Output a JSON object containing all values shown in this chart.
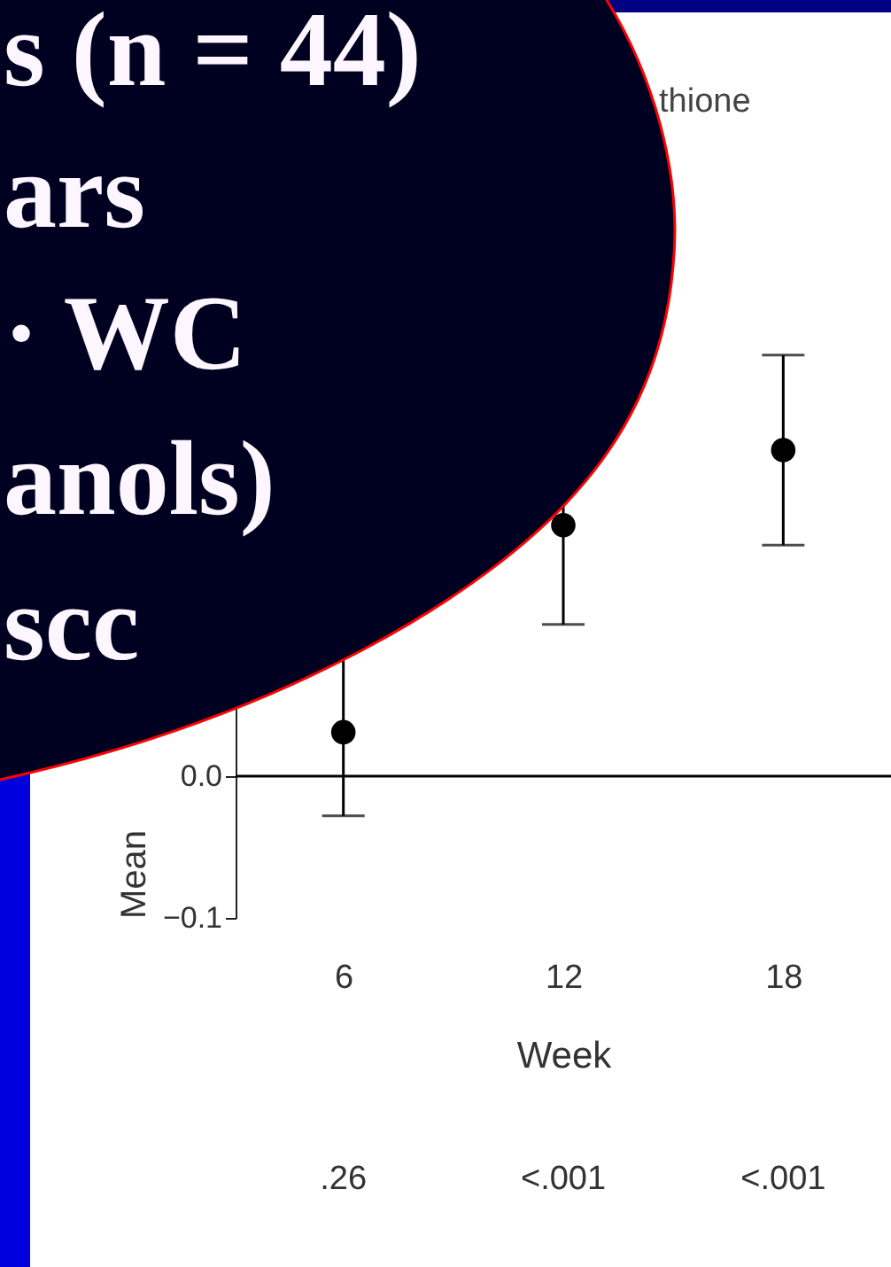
{
  "chart_data": {
    "type": "scatter",
    "title": "thione",
    "xlabel": "Week",
    "ylabel": "Mean",
    "categories": [
      "6",
      "12",
      "18"
    ],
    "series": [
      {
        "color": "#000000",
        "values": [
          0.031,
          0.177,
          0.23
        ],
        "errors": [
          0.059,
          0.07,
          0.067
        ]
      }
    ],
    "ylim": [
      -0.1,
      0.4
    ],
    "yticks": [
      {
        "value": -0.1,
        "label": "−0.1"
      },
      {
        "value": 0.0,
        "label": "0.0"
      }
    ],
    "ref_lines": [
      {
        "axis": "y",
        "value": 0,
        "color": "#000000"
      }
    ],
    "marker": "circle",
    "grid": false,
    "annotations": [
      "s (n = 44)",
      "ars",
      "· WC",
      "anols)",
      "scc",
      ".26",
      "<.001",
      "<.001"
    ]
  }
}
